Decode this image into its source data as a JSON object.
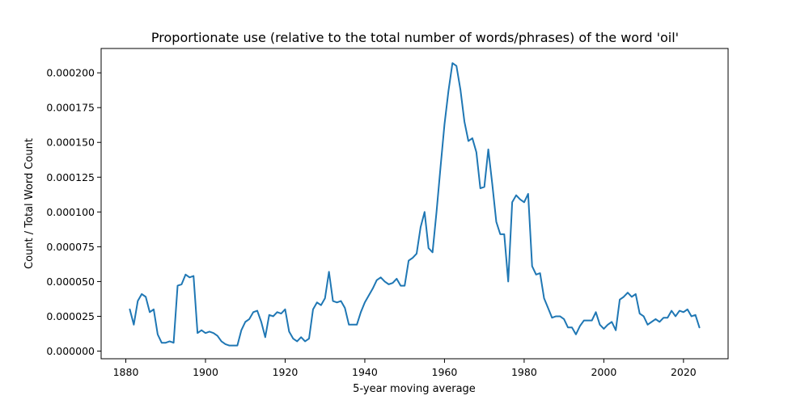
{
  "chart_data": {
    "type": "line",
    "title": "Proportionate use (relative to the total number of words/phrases) of the word 'oil'",
    "xlabel": "5-year moving average",
    "ylabel": "Count / Total Word Count",
    "xlim": [
      1873.8,
      2031.2
    ],
    "ylim": [
      -5.5e-06,
      0.0002175
    ],
    "grid": false,
    "legend": "none",
    "line_color": "#1f77b4",
    "x_ticks": [
      1880,
      1900,
      1920,
      1940,
      1960,
      1980,
      2000,
      2020
    ],
    "x_tick_labels": [
      "1880",
      "1900",
      "1920",
      "1940",
      "1960",
      "1980",
      "2000",
      "2020"
    ],
    "y_ticks": [
      0,
      2.5e-05,
      5e-05,
      7.5e-05,
      0.0001,
      0.000125,
      0.00015,
      0.000175,
      0.0002
    ],
    "y_tick_labels": [
      "0.000000",
      "0.000025",
      "0.000050",
      "0.000075",
      "0.000100",
      "0.000125",
      "0.000150",
      "0.000175",
      "0.000200"
    ],
    "series": [
      {
        "x": [
          1881,
          1882,
          1883,
          1884,
          1885,
          1886,
          1887,
          1888,
          1889,
          1890,
          1891,
          1892,
          1893,
          1894,
          1895,
          1896,
          1897,
          1898,
          1899,
          1900,
          1901,
          1902,
          1903,
          1904,
          1905,
          1906,
          1907,
          1908,
          1909,
          1910,
          1911,
          1912,
          1913,
          1914,
          1915,
          1916,
          1917,
          1918,
          1919,
          1920,
          1921,
          1922,
          1923,
          1924,
          1925,
          1926,
          1927,
          1928,
          1929,
          1930,
          1931,
          1932,
          1933,
          1934,
          1935,
          1936,
          1937,
          1938,
          1939,
          1940,
          1941,
          1942,
          1943,
          1944,
          1945,
          1946,
          1947,
          1948,
          1949,
          1950,
          1951,
          1952,
          1953,
          1954,
          1955,
          1956,
          1957,
          1958,
          1959,
          1960,
          1961,
          1962,
          1963,
          1964,
          1965,
          1966,
          1967,
          1968,
          1969,
          1970,
          1971,
          1972,
          1973,
          1974,
          1975,
          1976,
          1977,
          1978,
          1979,
          1980,
          1981,
          1982,
          1983,
          1984,
          1985,
          1986,
          1987,
          1988,
          1989,
          1990,
          1991,
          1992,
          1993,
          1994,
          1995,
          1996,
          1997,
          1998,
          1999,
          2000,
          2001,
          2002,
          2003,
          2004,
          2005,
          2006,
          2007,
          2008,
          2009,
          2010,
          2011,
          2012,
          2013,
          2014,
          2015,
          2016,
          2017,
          2018,
          2019,
          2020,
          2021,
          2022,
          2023,
          2024
        ],
        "values": [
          3e-05,
          1.9e-05,
          3.6e-05,
          4.1e-05,
          3.9e-05,
          2.8e-05,
          3e-05,
          1.2e-05,
          6e-06,
          6e-06,
          7e-06,
          6e-06,
          4.7e-05,
          4.8e-05,
          5.5e-05,
          5.3e-05,
          5.4e-05,
          1.3e-05,
          1.5e-05,
          1.3e-05,
          1.4e-05,
          1.3e-05,
          1.1e-05,
          7e-06,
          5e-06,
          4e-06,
          4e-06,
          4e-06,
          1.5e-05,
          2.1e-05,
          2.3e-05,
          2.8e-05,
          2.9e-05,
          2.1e-05,
          1e-05,
          2.6e-05,
          2.5e-05,
          2.8e-05,
          2.7e-05,
          3e-05,
          1.4e-05,
          9e-06,
          7e-06,
          1e-05,
          7e-06,
          9e-06,
          3e-05,
          3.5e-05,
          3.3e-05,
          3.8e-05,
          5.7e-05,
          3.6e-05,
          3.5e-05,
          3.6e-05,
          3.1e-05,
          1.9e-05,
          1.9e-05,
          1.9e-05,
          2.8e-05,
          3.5e-05,
          4e-05,
          4.5e-05,
          5.1e-05,
          5.3e-05,
          5e-05,
          4.8e-05,
          4.9e-05,
          5.2e-05,
          4.7e-05,
          4.7e-05,
          6.5e-05,
          6.7e-05,
          7e-05,
          8.9e-05,
          0.0001,
          7.4e-05,
          7.1e-05,
          0.0001,
          0.000132,
          0.000163,
          0.000187,
          0.000207,
          0.000205,
          0.000188,
          0.000165,
          0.000151,
          0.000153,
          0.000143,
          0.000117,
          0.000118,
          0.000145,
          0.00012,
          9.3e-05,
          8.4e-05,
          8.4e-05,
          5e-05,
          0.000107,
          0.000112,
          0.000109,
          0.000107,
          0.000113,
          6.1e-05,
          5.5e-05,
          5.6e-05,
          3.8e-05,
          3.1e-05,
          2.4e-05,
          2.5e-05,
          2.5e-05,
          2.3e-05,
          1.7e-05,
          1.7e-05,
          1.2e-05,
          1.8e-05,
          2.2e-05,
          2.2e-05,
          2.2e-05,
          2.8e-05,
          1.9e-05,
          1.6e-05,
          1.9e-05,
          2.1e-05,
          1.5e-05,
          3.7e-05,
          3.9e-05,
          4.2e-05,
          3.9e-05,
          4.1e-05,
          2.7e-05,
          2.5e-05,
          1.9e-05,
          2.1e-05,
          2.3e-05,
          2.1e-05,
          2.4e-05,
          2.4e-05,
          2.9e-05,
          2.5e-05,
          2.9e-05,
          2.8e-05,
          3e-05,
          2.5e-05,
          2.6e-05,
          1.7e-05
        ]
      }
    ]
  }
}
